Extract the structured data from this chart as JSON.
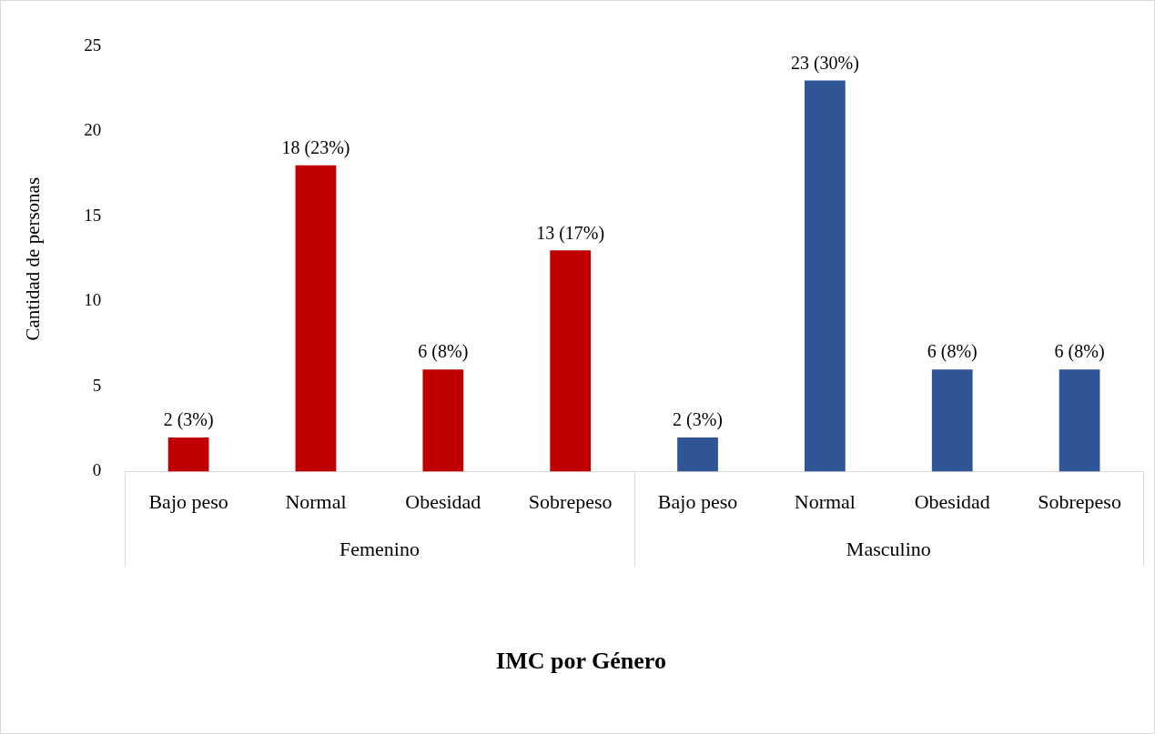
{
  "chart_data": {
    "type": "bar",
    "title": "IMC por Género",
    "ylabel": "Cantidad de personas",
    "categories": [
      "Bajo peso",
      "Normal",
      "Obesidad",
      "Sobrepeso",
      "Bajo peso",
      "Normal",
      "Obesidad",
      "Sobrepeso"
    ],
    "values": [
      2,
      18,
      6,
      13,
      2,
      23,
      6,
      6
    ],
    "colors": [
      "#c00000",
      "#c00000",
      "#c00000",
      "#c00000",
      "#2f5597",
      "#2f5597",
      "#2f5597",
      "#2f5597"
    ],
    "value_labels": [
      "2 (3%)",
      "18 (23%)",
      "6 (8%)",
      "13 (17%)",
      "2 (3%)",
      "23 (30%)",
      "6 (8%)",
      "6 (8%)"
    ],
    "annotations": [
      "Femenino",
      "Masculino"
    ],
    "ylim": [
      0,
      25
    ],
    "yticks": [
      0,
      5,
      10,
      15,
      20,
      25
    ],
    "grid": false,
    "legend": false
  }
}
